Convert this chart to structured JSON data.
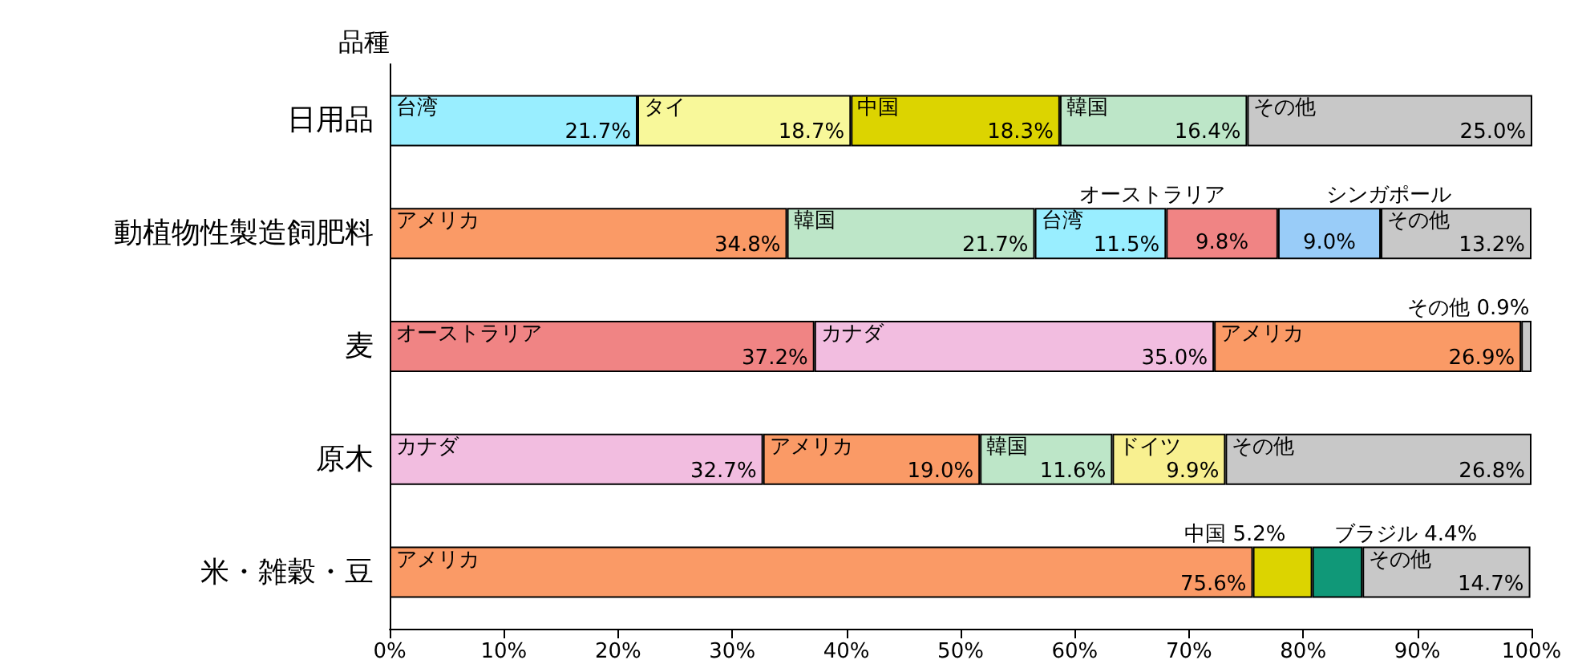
{
  "chart_data": {
    "type": "bar",
    "orientation": "horizontal",
    "stacked": true,
    "ylabel": "品種",
    "categories": [
      "日用品",
      "動植物性製造飼肥料",
      "麦",
      "原木",
      "米・雑穀・豆"
    ],
    "series": [
      {
        "values": [
          21.7,
          34.8,
          37.2,
          32.7,
          75.6
        ],
        "colors": [
          "#99eeff",
          "#fa9a66",
          "#f08484",
          "#f2bde0",
          "#fa9a66"
        ],
        "value_labels": [
          "台湾\n21.7%",
          "アメリカ\n34.8%",
          "オーストラリア\n37.2%",
          "カナダ\n32.7%",
          "アメリカ\n75.6%"
        ]
      },
      {
        "values": [
          18.7,
          21.7,
          35.0,
          19.0,
          5.2
        ],
        "colors": [
          "#f8f89a",
          "#bde6c8",
          "#f2bde0",
          "#fa9a66",
          "#dcd400"
        ],
        "value_labels": [
          "タイ\n18.7%",
          "韓国\n21.7%",
          "カナダ\n35.0%",
          "アメリカ\n19.0%",
          "中国 5.2%"
        ]
      },
      {
        "values": [
          18.3,
          11.5,
          26.9,
          11.6,
          4.4
        ],
        "colors": [
          "#dcd400",
          "#99eeff",
          "#fa9a66",
          "#bde6c8",
          "#109878"
        ],
        "value_labels": [
          "中国\n18.3%",
          "台湾\n11.5%",
          "アメリカ\n26.9%",
          "韓国\n11.6%",
          "ブラジル 4.4%"
        ]
      },
      {
        "values": [
          16.4,
          9.8,
          0.9,
          9.9,
          14.7
        ],
        "colors": [
          "#bde6c8",
          "#f08484",
          "#c8c8c8",
          "#f8f090",
          "#c8c8c8"
        ],
        "value_labels": [
          "韓国\n16.4%",
          "オーストラリア\n9.8%",
          "その他 0.9%",
          "ドイツ\n9.9%",
          "その他\n14.7%"
        ]
      },
      {
        "values": [
          25.0,
          9.0,
          null,
          26.8,
          null
        ],
        "colors": [
          "#c8c8c8",
          "#99ccf8",
          null,
          "#c8c8c8",
          null
        ],
        "value_labels": [
          "その他\n25.0%",
          "シンガポール\n9.0%",
          null,
          "その他\n26.8%",
          null
        ]
      },
      {
        "values": [
          null,
          13.2,
          null,
          null,
          null
        ],
        "colors": [
          null,
          "#c8c8c8",
          null,
          null,
          null
        ],
        "value_labels": [
          null,
          "その他\n13.2%",
          null,
          null,
          null
        ]
      }
    ],
    "xlim": [
      0,
      100
    ],
    "xticks": [
      {
        "value": 0,
        "label": "0%"
      },
      {
        "value": 10,
        "label": "10%"
      },
      {
        "value": 20,
        "label": "20%"
      },
      {
        "value": 30,
        "label": "30%"
      },
      {
        "value": 40,
        "label": "40%"
      },
      {
        "value": 50,
        "label": "50%"
      },
      {
        "value": 60,
        "label": "60%"
      },
      {
        "value": 70,
        "label": "70%"
      },
      {
        "value": 80,
        "label": "80%"
      },
      {
        "value": 90,
        "label": "90%"
      },
      {
        "value": 100,
        "label": "100%"
      }
    ],
    "grid": false
  }
}
